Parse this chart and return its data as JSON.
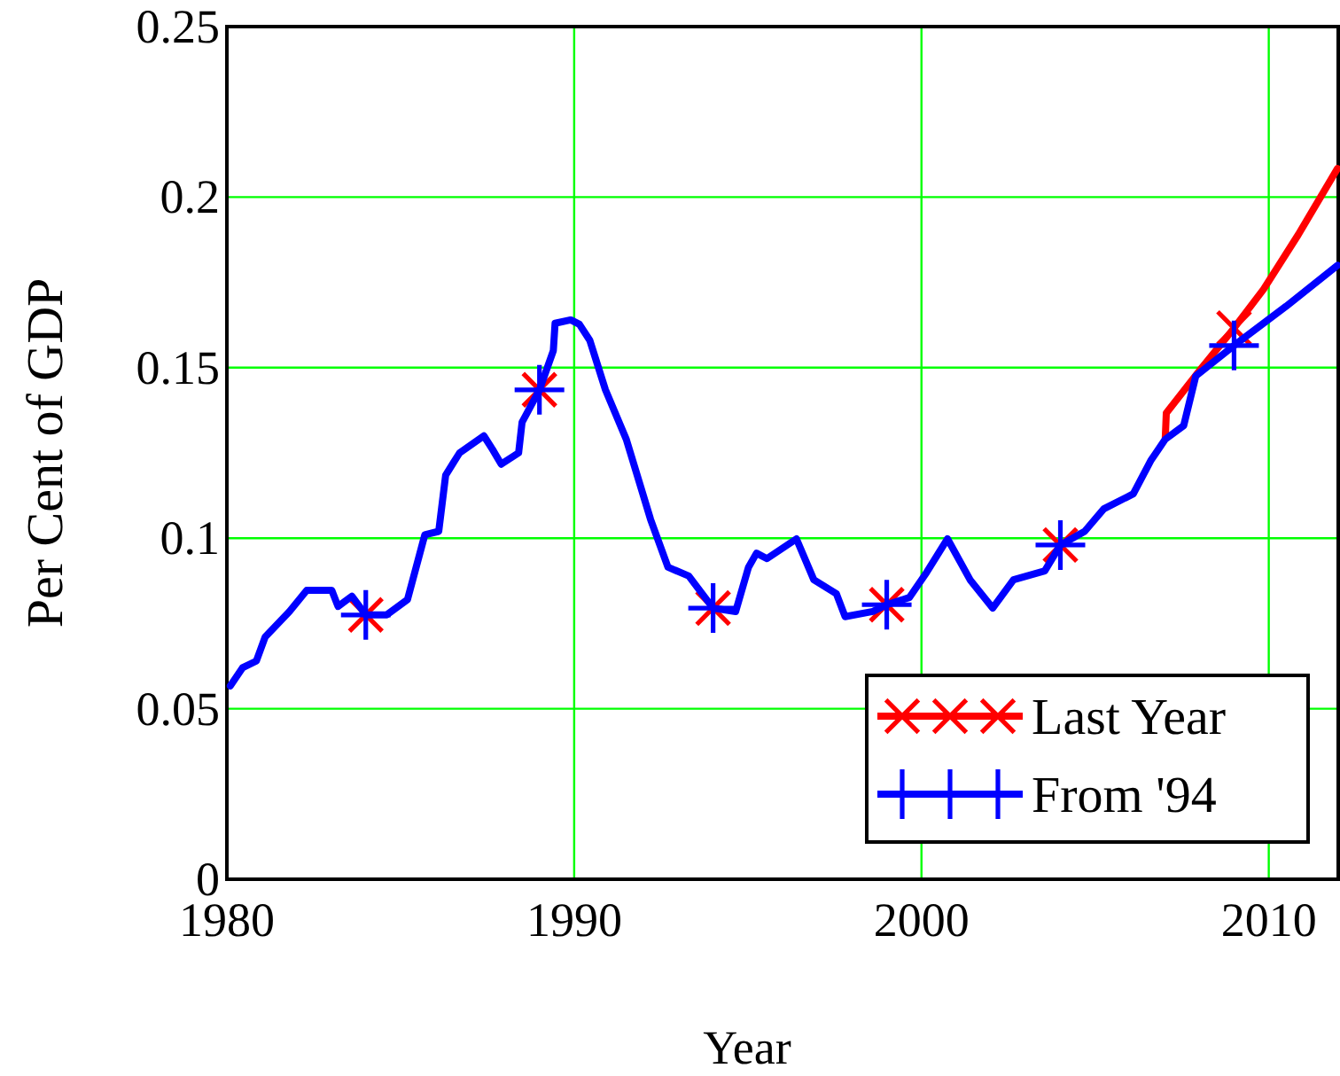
{
  "chart_data": {
    "type": "line",
    "xlabel": "Year",
    "ylabel": "Per Cent of GDP",
    "xlim": [
      1980,
      2012
    ],
    "ylim": [
      0,
      0.25
    ],
    "xticks": [
      1980,
      1990,
      2000,
      2010
    ],
    "yticks": [
      0,
      0.05,
      0.1,
      0.15,
      0.2,
      0.25
    ],
    "grid": true,
    "legend": "bottom right",
    "line_style": "solid",
    "series": [
      {
        "name": "Last Year",
        "color": "#ff0000",
        "x": [
          2007.02,
          2007.05,
          2008.05,
          2009,
          2009.85,
          2010.85,
          2011.98
        ],
        "values": [
          0.1294,
          0.1367,
          0.1497,
          0.1616,
          0.173,
          0.189,
          0.2084
        ]
      },
      {
        "type": "scatter",
        "color": "#ff0000",
        "marker": "x",
        "x": [
          1984,
          1989,
          1994,
          1999,
          2004,
          2009
        ],
        "values": [
          0.0775,
          0.1435,
          0.0795,
          0.0805,
          0.098,
          0.1616
        ]
      },
      {
        "type": "scatter",
        "color": "#0000ff",
        "marker": "cross",
        "x": [
          1984,
          1989,
          1994,
          1999,
          2004,
          2009
        ],
        "values": [
          0.0775,
          0.1435,
          0.0795,
          0.0805,
          0.098,
          0.1565
        ]
      },
      {
        "name": "From '94",
        "color": "#0000ff",
        "x": [
          1980.1,
          1980.45,
          1980.85,
          1981.1,
          1981.8,
          1982.3,
          1983.02,
          1983.2,
          1983.6,
          1984,
          1984.6,
          1985.2,
          1985.7,
          1986.1,
          1986.3,
          1986.7,
          1987.4,
          1987.65,
          1987.9,
          1988.4,
          1988.5,
          1989,
          1989.4,
          1989.45,
          1989.9,
          1990.15,
          1990.45,
          1990.9,
          1991.5,
          1992.2,
          1992.7,
          1993.3,
          1994,
          1994.65,
          1995.02,
          1995.25,
          1995.55,
          1996.4,
          1996.9,
          1997.55,
          1997.8,
          1998.6,
          1999,
          1999.65,
          2000.15,
          2000.75,
          2001.4,
          2002.05,
          2002.65,
          2003.55,
          2004,
          2004.7,
          2005.25,
          2006.1,
          2006.6,
          2007.02,
          2007.55,
          2007.9,
          2009,
          2010.5,
          2011.98
        ],
        "values": [
          0.0567,
          0.062,
          0.064,
          0.071,
          0.0785,
          0.0847,
          0.0847,
          0.08,
          0.083,
          0.0775,
          0.0775,
          0.082,
          0.101,
          0.102,
          0.1185,
          0.125,
          0.13,
          0.126,
          0.1217,
          0.125,
          0.134,
          0.1435,
          0.155,
          0.163,
          0.164,
          0.1627,
          0.158,
          0.1435,
          0.129,
          0.1055,
          0.0915,
          0.0889,
          0.0795,
          0.0785,
          0.0915,
          0.0956,
          0.094,
          0.0998,
          0.0878,
          0.0837,
          0.077,
          0.0785,
          0.0805,
          0.0826,
          0.09,
          0.0998,
          0.0878,
          0.0795,
          0.0878,
          0.0904,
          0.098,
          0.102,
          0.1086,
          0.113,
          0.1227,
          0.129,
          0.133,
          0.1476,
          0.1565,
          0.168,
          0.18
        ]
      }
    ]
  }
}
